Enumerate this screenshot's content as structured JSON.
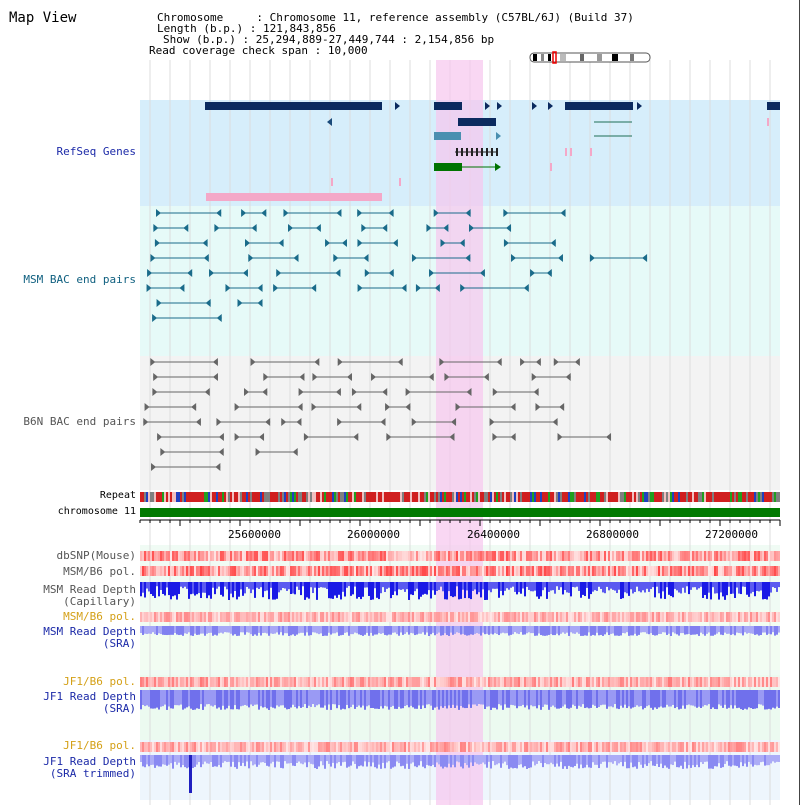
{
  "title": "Map View",
  "info": {
    "chromosome_label": "Chromosome",
    "chromosome_value": "Chromosome 11, reference assembly (C57BL/6J) (Build 37)",
    "length_label": "Length (b.p.)",
    "length_value": "121,843,856",
    "show_label": "Show (b.p.)",
    "show_value": "25,294,889-27,449,744 : 2,154,856 bp",
    "coverage_label": "Read coverage check span",
    "coverage_value": "10,000"
  },
  "tracks": {
    "refseq": "RefSeq Genes",
    "msm_bac": "MSM BAC end pairs",
    "b6n_bac": "B6N BAC end pairs",
    "repeat": "Repeat",
    "chromosome": "chromosome 11",
    "dbsnp": "dbSNP(Mouse)",
    "msm_b6_pol_1": "MSM/B6 pol.",
    "msm_read_depth_cap_1": "MSM Read Depth",
    "msm_read_depth_cap_2": "(Capillary)",
    "msm_b6_pol_2": "MSM/B6 pol.",
    "msm_read_depth_sra_1": "MSM Read Depth",
    "msm_read_depth_sra_2": "(SRA)",
    "jf1_b6_pol_1": "JF1/B6 pol.",
    "jf1_read_depth_sra_1": "JF1 Read Depth",
    "jf1_read_depth_sra_2": "(SRA)",
    "jf1_b6_pol_2": "JF1/B6 pol.",
    "jf1_read_depth_trim_1": "JF1 Read Depth",
    "jf1_read_depth_trim_2": "(SRA trimmed)"
  },
  "axis": {
    "ticks": [
      "25600000",
      "26000000",
      "26400000",
      "26800000",
      "27200000"
    ]
  },
  "colors": {
    "refseq_bg": "#d6eefb",
    "bac_bg": "#e6faf8",
    "gray_bg": "#f3f3f3",
    "highlight": "#f7c6ee",
    "chromosome_bar": "#007a00",
    "read_depth_blue": "#1a1ae6",
    "read_depth_light": "#8f8ff5"
  }
}
